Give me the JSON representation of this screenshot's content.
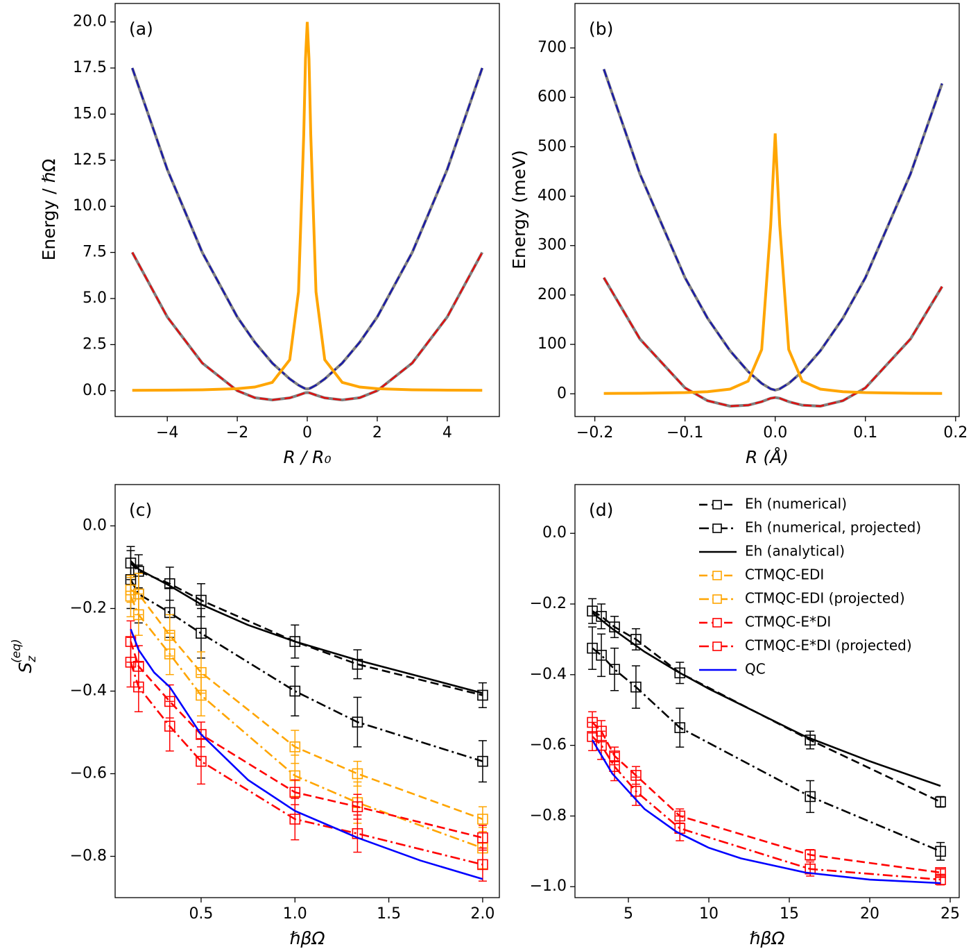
{
  "chart_data": [
    {
      "type": "line",
      "label": "(a)",
      "xlabel": "R / R₀",
      "ylabel": "Energy / ℏΩ",
      "xlim": [
        -5.49,
        5.49
      ],
      "ylim": [
        -1.4,
        21.0
      ],
      "xticks": [
        {
          "value": -4,
          "label": "−4"
        },
        {
          "value": -2,
          "label": "−2"
        },
        0,
        2,
        4
      ],
      "yticks": [
        {
          "value": 0,
          "label": "0.0"
        },
        {
          "value": 2.5,
          "label": "2.5"
        },
        {
          "value": 5,
          "label": "5.0"
        },
        {
          "value": 7.5,
          "label": "7.5"
        },
        {
          "value": 10,
          "label": "10.0"
        },
        {
          "value": 12.5,
          "label": "12.5"
        },
        {
          "value": 15,
          "label": "15.0"
        },
        {
          "value": 17.5,
          "label": "17.5"
        },
        {
          "value": 20,
          "label": "20.0"
        }
      ],
      "x": [
        -5,
        -4,
        -3,
        -2,
        -1.5,
        -1,
        -0.5,
        -0.25,
        -0.1,
        -0.05,
        0,
        0.05,
        0.1,
        0.25,
        0.5,
        1,
        1.5,
        2,
        3,
        4,
        5
      ],
      "series": [
        {
          "color": "#808080",
          "linestyle": "solid",
          "values": [
            17.5,
            12.0,
            7.5,
            4.0,
            2.63,
            1.5,
            0.64,
            0.3,
            0.15,
            0.11,
            0.1,
            0.11,
            0.15,
            0.3,
            0.64,
            1.5,
            2.63,
            4.0,
            7.5,
            12.0,
            17.5
          ]
        },
        {
          "color": "#808080",
          "linestyle": "solid",
          "values": [
            7.5,
            4.0,
            1.5,
            0.0,
            -0.38,
            -0.5,
            -0.39,
            -0.24,
            -0.14,
            -0.11,
            -0.1,
            -0.11,
            -0.14,
            -0.24,
            -0.39,
            -0.5,
            -0.38,
            0.0,
            1.5,
            4.0,
            7.5
          ]
        },
        {
          "color": "#1a1aa8",
          "linestyle": "dashed",
          "values": [
            17.5,
            12.0,
            7.5,
            4.0,
            2.63,
            1.5,
            0.64,
            0.3,
            0.15,
            0.11,
            0.1,
            0.11,
            0.15,
            0.3,
            0.64,
            1.5,
            2.63,
            4.0,
            7.5,
            12.0,
            17.5
          ]
        },
        {
          "color": "#e01010",
          "linestyle": "dashed",
          "values": [
            7.5,
            4.0,
            1.5,
            0.0,
            -0.38,
            -0.5,
            -0.39,
            -0.24,
            -0.14,
            -0.11,
            -0.1,
            -0.11,
            -0.14,
            -0.24,
            -0.39,
            -0.5,
            -0.38,
            0.0,
            1.5,
            4.0,
            7.5
          ]
        },
        {
          "color": "#ffa500",
          "linestyle": "solid",
          "values": [
            0.02,
            0.03,
            0.05,
            0.11,
            0.2,
            0.45,
            1.68,
            5.36,
            13.9,
            18.0,
            20.0,
            18.0,
            13.9,
            5.36,
            1.68,
            0.45,
            0.2,
            0.11,
            0.05,
            0.03,
            0.02
          ]
        }
      ]
    },
    {
      "type": "line",
      "label": "(b)",
      "xlabel": "R (Å)",
      "ylabel": "Energy (meV)",
      "xlim": [
        -0.222,
        0.204
      ],
      "ylim": [
        -46,
        790
      ],
      "xticks": [
        {
          "value": -0.2,
          "label": "−0.2"
        },
        {
          "value": -0.1,
          "label": "−0.1"
        },
        {
          "value": 0,
          "label": "0.0"
        },
        0.1,
        0.2
      ],
      "yticks": [
        0,
        100,
        200,
        300,
        400,
        500,
        600,
        700
      ],
      "x": [
        -0.19,
        -0.15,
        -0.1,
        -0.075,
        -0.05,
        -0.03,
        -0.015,
        -0.005,
        0,
        0.005,
        0.015,
        0.03,
        0.05,
        0.075,
        0.1,
        0.15,
        0.185
      ],
      "series": [
        {
          "color": "#808080",
          "linestyle": "solid",
          "values": [
            657,
            445,
            235,
            153,
            87,
            45,
            21,
            10,
            7.5,
            10,
            21,
            45,
            87,
            153,
            235,
            445,
            628
          ]
        },
        {
          "color": "#808080",
          "linestyle": "solid",
          "values": [
            235,
            111,
            12,
            -14,
            -25,
            -23,
            -16,
            -9,
            -7.5,
            -9,
            -16,
            -23,
            -25,
            -14,
            12,
            111,
            217
          ]
        },
        {
          "color": "#1a1aa8",
          "linestyle": "dashed",
          "values": [
            657,
            445,
            235,
            153,
            87,
            45,
            21,
            10,
            7.5,
            10,
            21,
            45,
            87,
            153,
            235,
            445,
            628
          ]
        },
        {
          "color": "#e01010",
          "linestyle": "dashed",
          "values": [
            235,
            111,
            12,
            -14,
            -25,
            -23,
            -16,
            -9,
            -7.5,
            -9,
            -16,
            -23,
            -25,
            -14,
            12,
            111,
            217
          ]
        },
        {
          "color": "#ffa500",
          "linestyle": "solid",
          "values": [
            0.7,
            1.1,
            2.4,
            4.3,
            9.5,
            25.6,
            89.5,
            341,
            527,
            341,
            89.5,
            25.6,
            9.5,
            4.3,
            2.4,
            1.1,
            0.7
          ]
        }
      ]
    },
    {
      "type": "line",
      "label": "(c)",
      "xlabel": "ℏβΩ",
      "ylabel": "S",
      "ylabel_sub": "z",
      "ylabel_sup": "(eq)",
      "xlim": [
        0.042,
        2.089
      ],
      "ylim": [
        -0.9,
        0.1
      ],
      "xticks": [
        0.5,
        {
          "value": 1,
          "label": "1.0"
        },
        1.5,
        {
          "value": 2,
          "label": "2.0"
        }
      ],
      "yticks": [
        {
          "value": 0,
          "label": "0.0"
        },
        {
          "value": -0.2,
          "label": "−0.2"
        },
        {
          "value": -0.4,
          "label": "−0.4"
        },
        {
          "value": -0.6,
          "label": "−0.6"
        },
        {
          "value": -0.8,
          "label": "−0.8"
        }
      ],
      "x": [
        0.125,
        0.167,
        0.333,
        0.5,
        1.0,
        1.333,
        2.0
      ],
      "series": [
        {
          "name": "Eh (numerical)",
          "color": "#000000",
          "linestyle": "dashed",
          "marker": "square",
          "values": [
            -0.09,
            -0.11,
            -0.14,
            -0.18,
            -0.28,
            -0.335,
            -0.41
          ],
          "errors": [
            0.04,
            0.04,
            0.04,
            0.04,
            0.04,
            0.035,
            0.03
          ]
        },
        {
          "name": "Eh (numerical, projected)",
          "color": "#000000",
          "linestyle": "dashdot",
          "marker": "square",
          "values": [
            -0.13,
            -0.165,
            -0.21,
            -0.26,
            -0.4,
            -0.475,
            -0.57
          ],
          "errors": [
            0.07,
            0.07,
            0.06,
            0.06,
            0.06,
            0.06,
            0.05
          ]
        },
        {
          "name": "Eh (analytical)",
          "color": "#000000",
          "linestyle": "solid",
          "x": [
            0.125,
            0.167,
            0.25,
            0.333,
            0.5,
            0.75,
            1.0,
            1.333,
            1.667,
            2.0
          ],
          "values": [
            -0.085,
            -0.105,
            -0.125,
            -0.145,
            -0.19,
            -0.24,
            -0.28,
            -0.325,
            -0.365,
            -0.405
          ]
        },
        {
          "name": "CTMQC-EDI",
          "color": "#ffa500",
          "linestyle": "dashed",
          "marker": "square",
          "values": [
            -0.155,
            -0.165,
            -0.265,
            -0.355,
            -0.535,
            -0.6,
            -0.71
          ],
          "errors": [
            0.03,
            0.05,
            0.05,
            0.05,
            0.04,
            0.03,
            0.03
          ]
        },
        {
          "name": "CTMQC-EDI (projected)",
          "color": "#ffa500",
          "linestyle": "dashdot",
          "marker": "square",
          "values": [
            -0.17,
            -0.215,
            -0.31,
            -0.41,
            -0.605,
            -0.67,
            -0.78
          ],
          "errors": [
            0.05,
            0.05,
            0.05,
            0.05,
            0.05,
            0.05,
            0.05
          ]
        },
        {
          "name": "CTMQC-E*DI",
          "color": "#ff0000",
          "linestyle": "dashed",
          "marker": "square",
          "values": [
            -0.28,
            -0.34,
            -0.425,
            -0.505,
            -0.645,
            -0.68,
            -0.755
          ],
          "errors": [
            0.05,
            0.05,
            0.04,
            0.03,
            0.03,
            0.03,
            0.03
          ]
        },
        {
          "name": "CTMQC-E*DI (projected)",
          "color": "#ff0000",
          "linestyle": "dashdot",
          "marker": "square",
          "values": [
            -0.33,
            -0.39,
            -0.485,
            -0.57,
            -0.71,
            -0.745,
            -0.82
          ],
          "errors": [
            0.06,
            0.06,
            0.06,
            0.055,
            0.05,
            0.045,
            0.04
          ]
        },
        {
          "name": "QC",
          "color": "#0000ff",
          "linestyle": "solid",
          "x": [
            0.125,
            0.167,
            0.25,
            0.333,
            0.5,
            0.75,
            1.0,
            1.333,
            1.667,
            2.0
          ],
          "values": [
            -0.25,
            -0.3,
            -0.355,
            -0.39,
            -0.505,
            -0.615,
            -0.69,
            -0.755,
            -0.81,
            -0.855
          ]
        }
      ]
    },
    {
      "type": "line",
      "label": "(d)",
      "xlabel": "ℏβΩ",
      "xlim": [
        1.68,
        25.56
      ],
      "ylim": [
        -1.031,
        0.138
      ],
      "xticks": [
        5,
        10,
        15,
        20,
        25
      ],
      "yticks": [
        {
          "value": 0,
          "label": "0.0"
        },
        {
          "value": -0.2,
          "label": "−0.2"
        },
        {
          "value": -0.4,
          "label": "−0.4"
        },
        {
          "value": -0.6,
          "label": "−0.6"
        },
        {
          "value": -0.8,
          "label": "−0.8"
        },
        {
          "value": -1.0,
          "label": "−1.0"
        }
      ],
      "x": [
        2.76,
        3.32,
        4.14,
        5.47,
        8.2,
        16.3,
        24.4
      ],
      "series": [
        {
          "color": "#000000",
          "linestyle": "dashed",
          "marker": "square",
          "values": [
            -0.22,
            -0.235,
            -0.265,
            -0.3,
            -0.395,
            -0.585,
            -0.76
          ],
          "errors": [
            0.035,
            0.035,
            0.03,
            0.03,
            0.03,
            0.025,
            0.015
          ]
        },
        {
          "color": "#000000",
          "linestyle": "dashdot",
          "marker": "square",
          "values": [
            -0.325,
            -0.345,
            -0.385,
            -0.435,
            -0.55,
            -0.745,
            -0.9
          ],
          "errors": [
            0.06,
            0.06,
            0.06,
            0.06,
            0.055,
            0.045,
            0.025
          ]
        },
        {
          "color": "#000000",
          "linestyle": "solid",
          "x": [
            2.76,
            4,
            6,
            8,
            10,
            12,
            16,
            20,
            24.4
          ],
          "values": [
            -0.225,
            -0.27,
            -0.335,
            -0.39,
            -0.44,
            -0.485,
            -0.575,
            -0.645,
            -0.715
          ]
        },
        {
          "color": "#ff0000",
          "linestyle": "dashed",
          "marker": "square",
          "values": [
            -0.535,
            -0.56,
            -0.63,
            -0.685,
            -0.8,
            -0.91,
            -0.96
          ],
          "errors": [
            0.03,
            0.03,
            0.025,
            0.025,
            0.02,
            0.015,
            0.01
          ]
        },
        {
          "color": "#ff0000",
          "linestyle": "dashdot",
          "marker": "square",
          "values": [
            -0.575,
            -0.6,
            -0.66,
            -0.73,
            -0.835,
            -0.95,
            -0.98
          ],
          "errors": [
            0.04,
            0.04,
            0.04,
            0.04,
            0.035,
            0.02,
            0.015
          ]
        },
        {
          "color": "#0000ff",
          "linestyle": "solid",
          "x": [
            2.76,
            4,
            6,
            8,
            10,
            12,
            16,
            20,
            24.4
          ],
          "values": [
            -0.585,
            -0.68,
            -0.78,
            -0.845,
            -0.89,
            -0.92,
            -0.96,
            -0.98,
            -0.99
          ]
        }
      ]
    }
  ]
}
